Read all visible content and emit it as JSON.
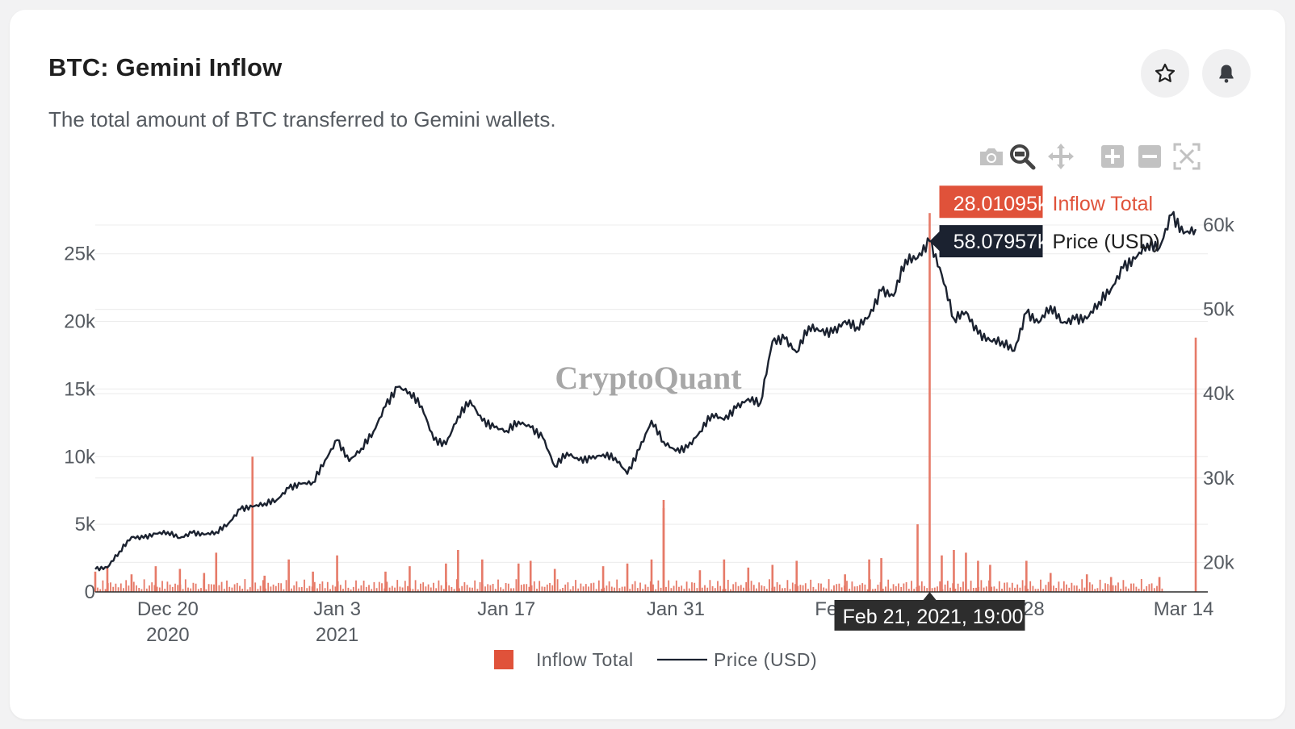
{
  "header": {
    "title": "BTC: Gemini Inflow",
    "subtitle": "The total amount of BTC transferred to Gemini wallets."
  },
  "actions": {
    "star_icon": "star-icon",
    "bell_icon": "bell-icon"
  },
  "modebar": [
    "camera-icon",
    "zoom-icon",
    "pan-icon",
    "zoom-in-icon",
    "zoom-out-icon",
    "autoscale-icon"
  ],
  "watermark": "CryptoQuant",
  "colors": {
    "inflow": "#e0523a",
    "inflow_fill": "#e67a68",
    "price": "#1b2230",
    "grid": "#ececec",
    "axis_text": "#555a60"
  },
  "chart_data": {
    "type": "bar+line",
    "x_range": [
      "2020-12-14",
      "2021-03-16"
    ],
    "x_ticks": [
      {
        "date": "2020-12-20",
        "label": "Dec 20",
        "sublabel": "2020"
      },
      {
        "date": "2021-01-03",
        "label": "Jan 3",
        "sublabel": "2021"
      },
      {
        "date": "2021-01-17",
        "label": "Jan 17",
        "sublabel": ""
      },
      {
        "date": "2021-01-31",
        "label": "Jan 31",
        "sublabel": ""
      },
      {
        "date": "2021-02-14",
        "label": "Feb 14",
        "sublabel": ""
      },
      {
        "date": "2021-02-28",
        "label": "Feb 28",
        "sublabel": ""
      },
      {
        "date": "2021-03-14",
        "label": "Mar 14",
        "sublabel": ""
      }
    ],
    "y_left": {
      "ticks": [
        0,
        5000,
        10000,
        15000,
        20000,
        25000
      ],
      "labels": [
        "0",
        "5k",
        "10k",
        "15k",
        "20k",
        "25k"
      ],
      "range": [
        0,
        28500
      ]
    },
    "y_right": {
      "ticks": [
        20000,
        30000,
        40000,
        50000,
        60000
      ],
      "labels": [
        "20k",
        "30k",
        "40k",
        "50k",
        "60k"
      ],
      "range": [
        16500,
        62200
      ]
    },
    "grid": true,
    "legend_position": "bottom-center",
    "series": [
      {
        "name": "Inflow Total",
        "axis": "left",
        "type": "bar",
        "points": [
          [
            "2020-12-14",
            1500
          ],
          [
            "2020-12-15",
            1900
          ],
          [
            "2020-12-17",
            1300
          ],
          [
            "2020-12-19",
            1900
          ],
          [
            "2020-12-21",
            1700
          ],
          [
            "2020-12-23",
            1400
          ],
          [
            "2020-12-24",
            2900
          ],
          [
            "2020-12-27",
            10000
          ],
          [
            "2020-12-28",
            1200
          ],
          [
            "2020-12-30",
            2400
          ],
          [
            "2021-01-01",
            1500
          ],
          [
            "2021-01-03",
            2700
          ],
          [
            "2021-01-07",
            1500
          ],
          [
            "2021-01-09",
            1900
          ],
          [
            "2021-01-12",
            2100
          ],
          [
            "2021-01-13",
            3100
          ],
          [
            "2021-01-15",
            2400
          ],
          [
            "2021-01-18",
            2100
          ],
          [
            "2021-01-19",
            2300
          ],
          [
            "2021-01-21",
            1700
          ],
          [
            "2021-01-25",
            1900
          ],
          [
            "2021-01-27",
            2100
          ],
          [
            "2021-01-29",
            2400
          ],
          [
            "2021-01-30",
            6800
          ],
          [
            "2021-01-30",
            6200
          ],
          [
            "2021-02-02",
            1600
          ],
          [
            "2021-02-04",
            2400
          ],
          [
            "2021-02-06",
            1800
          ],
          [
            "2021-02-08",
            2000
          ],
          [
            "2021-02-10",
            2300
          ],
          [
            "2021-02-14",
            1300
          ],
          [
            "2021-02-16",
            2400
          ],
          [
            "2021-02-17",
            2500
          ],
          [
            "2021-02-20",
            5000
          ],
          [
            "2021-02-21",
            28010.95
          ],
          [
            "2021-02-22",
            2700
          ],
          [
            "2021-02-23",
            3100
          ],
          [
            "2021-02-24",
            2900
          ],
          [
            "2021-02-25",
            2300
          ],
          [
            "2021-02-26",
            2000
          ],
          [
            "2021-03-01",
            2300
          ],
          [
            "2021-03-03",
            1400
          ],
          [
            "2021-03-06",
            1300
          ],
          [
            "2021-03-08",
            1100
          ],
          [
            "2021-03-12",
            1100
          ],
          [
            "2021-03-15",
            18800
          ]
        ]
      },
      {
        "name": "Price (USD)",
        "axis": "right",
        "type": "line",
        "points": [
          [
            "2020-12-14",
            19200
          ],
          [
            "2020-12-15",
            19400
          ],
          [
            "2020-12-16",
            21300
          ],
          [
            "2020-12-17",
            23000
          ],
          [
            "2020-12-18",
            22900
          ],
          [
            "2020-12-19",
            23400
          ],
          [
            "2020-12-20",
            23600
          ],
          [
            "2020-12-21",
            22900
          ],
          [
            "2020-12-22",
            23500
          ],
          [
            "2020-12-23",
            23300
          ],
          [
            "2020-12-24",
            23600
          ],
          [
            "2020-12-25",
            24600
          ],
          [
            "2020-12-26",
            26300
          ],
          [
            "2020-12-27",
            26600
          ],
          [
            "2020-12-28",
            27000
          ],
          [
            "2020-12-29",
            27400
          ],
          [
            "2020-12-30",
            28800
          ],
          [
            "2020-12-31",
            29300
          ],
          [
            "2021-01-01",
            29500
          ],
          [
            "2021-01-02",
            32100
          ],
          [
            "2021-01-03",
            34500
          ],
          [
            "2021-01-04",
            32000
          ],
          [
            "2021-01-05",
            33500
          ],
          [
            "2021-01-06",
            35500
          ],
          [
            "2021-01-07",
            38500
          ],
          [
            "2021-01-08",
            40800
          ],
          [
            "2021-01-09",
            40200
          ],
          [
            "2021-01-10",
            38500
          ],
          [
            "2021-01-11",
            34500
          ],
          [
            "2021-01-12",
            34000
          ],
          [
            "2021-01-13",
            37300
          ],
          [
            "2021-01-14",
            39200
          ],
          [
            "2021-01-15",
            36800
          ],
          [
            "2021-01-16",
            36000
          ],
          [
            "2021-01-17",
            35600
          ],
          [
            "2021-01-18",
            36700
          ],
          [
            "2021-01-19",
            36000
          ],
          [
            "2021-01-20",
            34800
          ],
          [
            "2021-01-21",
            31400
          ],
          [
            "2021-01-22",
            33000
          ],
          [
            "2021-01-23",
            32100
          ],
          [
            "2021-01-24",
            32300
          ],
          [
            "2021-01-25",
            32800
          ],
          [
            "2021-01-26",
            32400
          ],
          [
            "2021-01-27",
            30500
          ],
          [
            "2021-01-28",
            33400
          ],
          [
            "2021-01-29",
            36800
          ],
          [
            "2021-01-30",
            34300
          ],
          [
            "2021-01-31",
            33200
          ],
          [
            "2021-02-01",
            33600
          ],
          [
            "2021-02-02",
            35500
          ],
          [
            "2021-02-03",
            37600
          ],
          [
            "2021-02-04",
            36900
          ],
          [
            "2021-02-05",
            38300
          ],
          [
            "2021-02-06",
            39400
          ],
          [
            "2021-02-07",
            38900
          ],
          [
            "2021-02-08",
            46200
          ],
          [
            "2021-02-09",
            46500
          ],
          [
            "2021-02-10",
            44900
          ],
          [
            "2021-02-11",
            48000
          ],
          [
            "2021-02-12",
            47400
          ],
          [
            "2021-02-13",
            47200
          ],
          [
            "2021-02-14",
            48600
          ],
          [
            "2021-02-15",
            47900
          ],
          [
            "2021-02-16",
            49200
          ],
          [
            "2021-02-17",
            52200
          ],
          [
            "2021-02-18",
            51600
          ],
          [
            "2021-02-19",
            55900
          ],
          [
            "2021-02-20",
            56100
          ],
          [
            "2021-02-21",
            58079.57
          ],
          [
            "2021-02-22",
            54100
          ],
          [
            "2021-02-23",
            48900
          ],
          [
            "2021-02-24",
            49700
          ],
          [
            "2021-02-25",
            47100
          ],
          [
            "2021-02-26",
            46300
          ],
          [
            "2021-02-27",
            46200
          ],
          [
            "2021-02-28",
            45100
          ],
          [
            "2021-03-01",
            49600
          ],
          [
            "2021-03-02",
            48400
          ],
          [
            "2021-03-03",
            50400
          ],
          [
            "2021-03-04",
            48400
          ],
          [
            "2021-03-05",
            48800
          ],
          [
            "2021-03-06",
            48900
          ],
          [
            "2021-03-07",
            50900
          ],
          [
            "2021-03-08",
            52400
          ],
          [
            "2021-03-09",
            54900
          ],
          [
            "2021-03-10",
            56000
          ],
          [
            "2021-03-11",
            57800
          ],
          [
            "2021-03-12",
            57300
          ],
          [
            "2021-03-13",
            61200
          ],
          [
            "2021-03-14",
            59000
          ],
          [
            "2021-03-15",
            59500
          ]
        ]
      }
    ],
    "hover": {
      "date": "2021-02-21",
      "label": "Feb 21, 2021, 19:00",
      "items": [
        {
          "value": "28.01095k",
          "name": "Inflow Total"
        },
        {
          "value": "58.07957k",
          "name": "Price (USD)"
        }
      ]
    }
  }
}
